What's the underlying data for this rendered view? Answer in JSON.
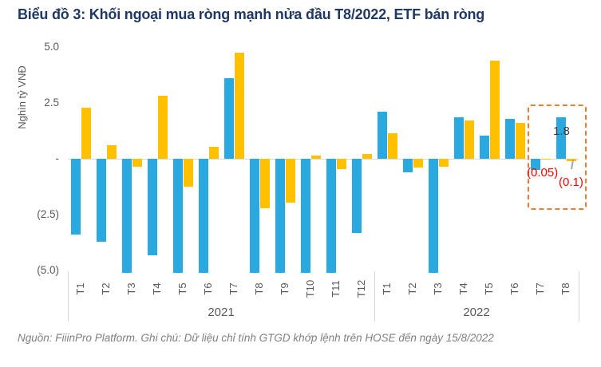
{
  "title": "Biểu đồ 3: Khối ngoại mua ròng mạnh nửa đầu T8/2022, ETF bán ròng",
  "source_note": "Nguồn: FiiinPro Platform. Ghi chú: Dữ liệu chỉ tính GTGD khớp lệnh trên HOSE đến ngày 15/8/2022",
  "colors": {
    "title": "#1F3864",
    "blue_series": "#29A9E0",
    "yellow_series": "#FFC000",
    "axis_text": "#595959",
    "grid_line": "#D9D9D9",
    "annotation_red": "#FF0000",
    "annotation_dark": "#3A3A3A",
    "highlight_box": "#ED7D31",
    "leader_line": "#A6A6A6",
    "source_text": "#7F7F7F"
  },
  "chart_data": {
    "type": "bar",
    "title": "Biểu đồ 3: Khối ngoại mua ròng mạnh nửa đầu T8/2022, ETF bán ròng",
    "xlabel": "",
    "ylabel": "Nghìn tỷ VNĐ",
    "ylim": [
      -5.1,
      5.1
    ],
    "grid": false,
    "legend_position": "none",
    "y_ticks": [
      {
        "value": 5.0,
        "label": "5.0"
      },
      {
        "value": 2.5,
        "label": "2.5"
      },
      {
        "value": 0,
        "label": "-"
      },
      {
        "value": -2.5,
        "label": "(2.5)"
      },
      {
        "value": -5.0,
        "label": "(5.0)"
      }
    ],
    "groups": [
      {
        "label": "2021",
        "months": [
          "T1",
          "T2",
          "T3",
          "T4",
          "T5",
          "T6",
          "T7",
          "T8",
          "T9",
          "T10",
          "T11",
          "T12"
        ]
      },
      {
        "label": "2022",
        "months": [
          "T1",
          "T2",
          "T3",
          "T4",
          "T5",
          "T6",
          "T7",
          "T8"
        ]
      }
    ],
    "clip_note": "Values of -5.1 are bars clipped at the plot bottom (below the -5.0 axis minimum)",
    "series": [
      {
        "name": "blue",
        "color": "#29A9E0",
        "values": [
          -3.4,
          -3.7,
          -5.1,
          -4.3,
          -5.1,
          -5.1,
          3.6,
          -5.1,
          -5.1,
          -5.1,
          -5.1,
          -3.3,
          2.1,
          -0.6,
          -5.1,
          1.85,
          1.05,
          1.8,
          -0.5,
          1.85
        ]
      },
      {
        "name": "yellow",
        "color": "#FFC000",
        "values": [
          2.3,
          0.6,
          -0.35,
          2.8,
          -1.25,
          0.55,
          4.75,
          -2.2,
          -1.95,
          0.15,
          -0.45,
          0.2,
          1.15,
          -0.4,
          -0.35,
          1.7,
          4.4,
          1.6,
          -0.05,
          -0.1
        ]
      }
    ],
    "annotations": [
      {
        "text": "1.8",
        "target": "2022 T8 blue bar",
        "style": "dark"
      },
      {
        "text": "(0.05)",
        "target": "2022 T7 yellow bar",
        "style": "red"
      },
      {
        "text": "(0.1)",
        "target": "2022 T8 yellow bar",
        "style": "red"
      }
    ],
    "highlight_box": {
      "months": [
        "2022 T7",
        "2022 T8"
      ],
      "style": "dashed",
      "border_color": "#ED7D31"
    }
  }
}
